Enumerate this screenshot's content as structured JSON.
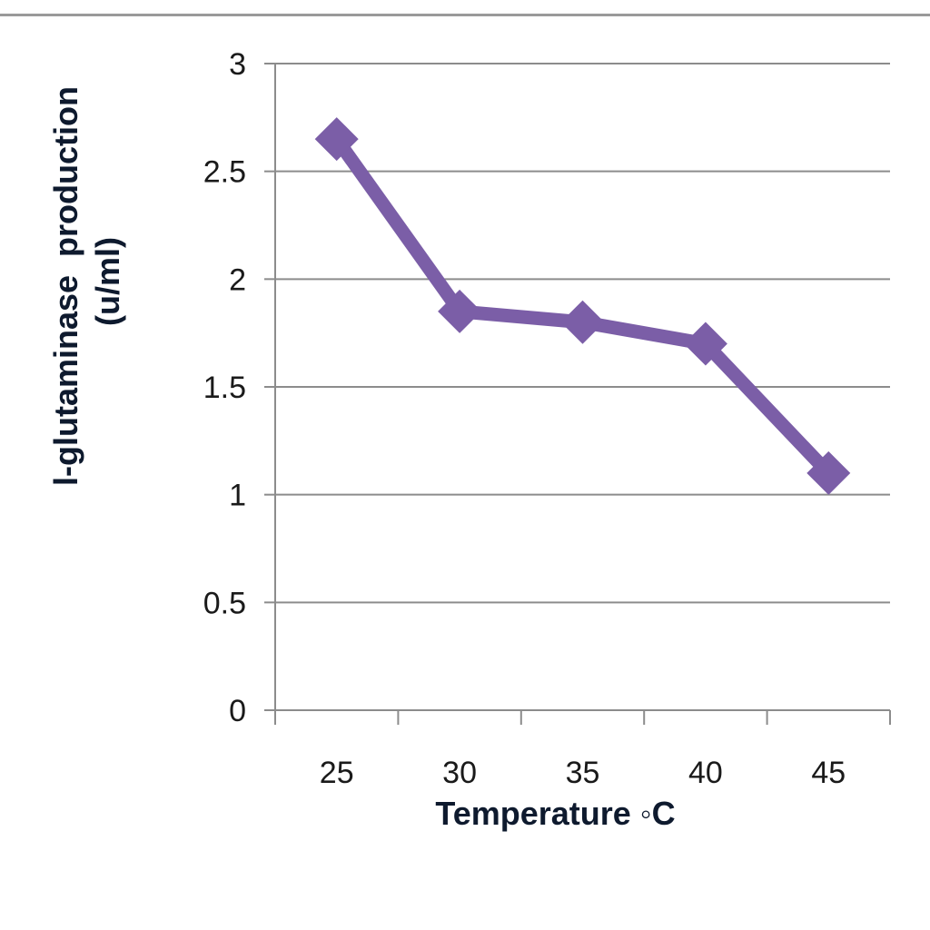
{
  "chart_data": {
    "type": "line",
    "title": "",
    "xlabel": "Temperature ◦C",
    "ylabel_lines": [
      "l-glutaminase  production",
      "(u/ml)"
    ],
    "categories": [
      "25",
      "30",
      "35",
      "40",
      "45"
    ],
    "series": [
      {
        "values": [
          2.65,
          1.85,
          1.8,
          1.7,
          1.1
        ]
      }
    ],
    "ylim": [
      0,
      3
    ],
    "yticks": [
      "0",
      "0.5",
      "1",
      "1.5",
      "2",
      "2.5",
      "3"
    ],
    "grid": true,
    "legend": "none",
    "marker": "diamond"
  },
  "colors": {
    "series": "#7b5ea7",
    "grid": "#8c8c8c",
    "axis": "#8c8c8c"
  }
}
